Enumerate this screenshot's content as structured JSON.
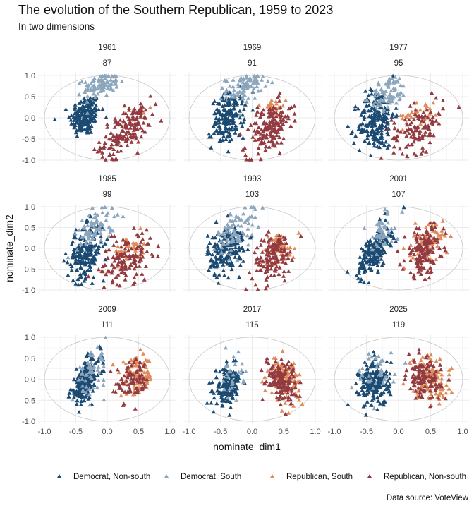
{
  "chart_data": {
    "type": "scatter",
    "title": "The evolution of the Southern Republican, 1959 to 2023",
    "subtitle": "In two dimensions",
    "xlabel": "nominate_dim1",
    "ylabel": "nominate_dim2",
    "caption": "Data source: VoteView",
    "xlim": [
      -1.1,
      1.1
    ],
    "ylim": [
      -1.05,
      1.05
    ],
    "x_ticks": [
      "-1.0",
      "-0.5",
      "0.0",
      "0.5",
      "1.0"
    ],
    "y_ticks": [
      "1.0",
      "0.5",
      "0.0",
      "-0.5",
      "-1.0"
    ],
    "x_tick_values": [
      -1.0,
      -0.5,
      0.0,
      0.5,
      1.0
    ],
    "y_tick_values": [
      1.0,
      0.5,
      0.0,
      -0.5,
      -1.0
    ],
    "grid": true,
    "reference_shape": "unit circle",
    "marker": "triangle",
    "legend_position": "bottom",
    "series": [
      {
        "name": "Democrat, Non-south",
        "color": "#1a4a72"
      },
      {
        "name": "Democrat, South",
        "color": "#8ba6bd"
      },
      {
        "name": "Republican, South",
        "color": "#e08b5a"
      },
      {
        "name": "Republican, Non-south",
        "color": "#923a40"
      }
    ],
    "panels": [
      {
        "year": "1961",
        "congress": "87",
        "clusters": [
          {
            "series": 0,
            "n": 170,
            "cx": -0.35,
            "cy": 0.05,
            "sx": 0.12,
            "sy": 0.25,
            "rho": 0.2
          },
          {
            "series": 1,
            "n": 95,
            "cx": -0.1,
            "cy": 0.78,
            "sx": 0.14,
            "sy": 0.15,
            "rho": 0.3
          },
          {
            "series": 2,
            "n": 8,
            "cx": 0.45,
            "cy": 0.15,
            "sx": 0.15,
            "sy": 0.1,
            "rho": 0.0
          },
          {
            "series": 3,
            "n": 165,
            "cx": 0.3,
            "cy": -0.3,
            "sx": 0.2,
            "sy": 0.3,
            "rho": 0.6
          }
        ]
      },
      {
        "year": "1969",
        "congress": "91",
        "clusters": [
          {
            "series": 0,
            "n": 170,
            "cx": -0.38,
            "cy": 0.0,
            "sx": 0.13,
            "sy": 0.3,
            "rho": 0.25
          },
          {
            "series": 1,
            "n": 80,
            "cx": -0.12,
            "cy": 0.72,
            "sx": 0.15,
            "sy": 0.17,
            "rho": 0.3
          },
          {
            "series": 2,
            "n": 25,
            "cx": 0.35,
            "cy": 0.25,
            "sx": 0.1,
            "sy": 0.13,
            "rho": 0.3
          },
          {
            "series": 3,
            "n": 160,
            "cx": 0.27,
            "cy": -0.25,
            "sx": 0.18,
            "sy": 0.32,
            "rho": 0.5
          }
        ]
      },
      {
        "year": "1977",
        "congress": "95",
        "clusters": [
          {
            "series": 0,
            "n": 200,
            "cx": -0.35,
            "cy": -0.05,
            "sx": 0.14,
            "sy": 0.38,
            "rho": 0.2
          },
          {
            "series": 1,
            "n": 75,
            "cx": -0.15,
            "cy": 0.6,
            "sx": 0.14,
            "sy": 0.2,
            "rho": 0.3
          },
          {
            "series": 2,
            "n": 30,
            "cx": 0.35,
            "cy": 0.15,
            "sx": 0.14,
            "sy": 0.15,
            "rho": 0.3
          },
          {
            "series": 3,
            "n": 115,
            "cx": 0.3,
            "cy": -0.25,
            "sx": 0.2,
            "sy": 0.3,
            "rho": 0.4
          }
        ]
      },
      {
        "year": "1985",
        "congress": "99",
        "clusters": [
          {
            "series": 0,
            "n": 200,
            "cx": -0.35,
            "cy": -0.1,
            "sx": 0.14,
            "sy": 0.32,
            "rho": 0.3
          },
          {
            "series": 1,
            "n": 75,
            "cx": -0.18,
            "cy": 0.5,
            "sx": 0.15,
            "sy": 0.25,
            "rho": 0.4
          },
          {
            "series": 2,
            "n": 40,
            "cx": 0.35,
            "cy": 0.0,
            "sx": 0.12,
            "sy": 0.17,
            "rho": 0.3
          },
          {
            "series": 3,
            "n": 130,
            "cx": 0.3,
            "cy": -0.25,
            "sx": 0.2,
            "sy": 0.3,
            "rho": 0.4
          }
        ]
      },
      {
        "year": "1993",
        "congress": "103",
        "clusters": [
          {
            "series": 0,
            "n": 190,
            "cx": -0.4,
            "cy": -0.05,
            "sx": 0.15,
            "sy": 0.3,
            "rho": 0.3
          },
          {
            "series": 1,
            "n": 80,
            "cx": -0.25,
            "cy": 0.45,
            "sx": 0.15,
            "sy": 0.28,
            "rho": 0.4
          },
          {
            "series": 2,
            "n": 60,
            "cx": 0.42,
            "cy": 0.0,
            "sx": 0.13,
            "sy": 0.2,
            "rho": 0.3
          },
          {
            "series": 3,
            "n": 130,
            "cx": 0.33,
            "cy": -0.2,
            "sx": 0.16,
            "sy": 0.3,
            "rho": 0.4
          }
        ]
      },
      {
        "year": "2001",
        "congress": "107",
        "clusters": [
          {
            "series": 0,
            "n": 175,
            "cx": -0.38,
            "cy": -0.1,
            "sx": 0.13,
            "sy": 0.3,
            "rho": 0.6
          },
          {
            "series": 1,
            "n": 50,
            "cx": -0.25,
            "cy": 0.4,
            "sx": 0.13,
            "sy": 0.28,
            "rho": 0.5
          },
          {
            "series": 2,
            "n": 85,
            "cx": 0.45,
            "cy": 0.1,
            "sx": 0.12,
            "sy": 0.25,
            "rho": 0.2
          },
          {
            "series": 3,
            "n": 135,
            "cx": 0.4,
            "cy": -0.05,
            "sx": 0.15,
            "sy": 0.3,
            "rho": 0.3
          }
        ]
      },
      {
        "year": "2009",
        "congress": "111",
        "clusters": [
          {
            "series": 0,
            "n": 200,
            "cx": -0.35,
            "cy": -0.05,
            "sx": 0.12,
            "sy": 0.28,
            "rho": 0.6
          },
          {
            "series": 1,
            "n": 55,
            "cx": -0.25,
            "cy": 0.15,
            "sx": 0.12,
            "sy": 0.3,
            "rho": 0.5
          },
          {
            "series": 2,
            "n": 95,
            "cx": 0.48,
            "cy": 0.05,
            "sx": 0.13,
            "sy": 0.22,
            "rho": 0.1
          },
          {
            "series": 3,
            "n": 80,
            "cx": 0.4,
            "cy": -0.05,
            "sx": 0.13,
            "sy": 0.25,
            "rho": 0.0
          }
        ]
      },
      {
        "year": "2017",
        "congress": "115",
        "clusters": [
          {
            "series": 0,
            "n": 160,
            "cx": -0.38,
            "cy": -0.15,
            "sx": 0.1,
            "sy": 0.22,
            "rho": 0.3
          },
          {
            "series": 1,
            "n": 30,
            "cx": -0.33,
            "cy": 0.1,
            "sx": 0.1,
            "sy": 0.25,
            "rho": 0.3
          },
          {
            "series": 2,
            "n": 110,
            "cx": 0.52,
            "cy": 0.0,
            "sx": 0.13,
            "sy": 0.25,
            "rho": -0.2
          },
          {
            "series": 3,
            "n": 130,
            "cx": 0.45,
            "cy": 0.0,
            "sx": 0.12,
            "sy": 0.25,
            "rho": -0.2
          }
        ]
      },
      {
        "year": "2025",
        "congress": "119",
        "clusters": [
          {
            "series": 0,
            "n": 175,
            "cx": -0.37,
            "cy": -0.1,
            "sx": 0.12,
            "sy": 0.28,
            "rho": 0.1
          },
          {
            "series": 1,
            "n": 35,
            "cx": -0.35,
            "cy": 0.1,
            "sx": 0.15,
            "sy": 0.3,
            "rho": 0.2
          },
          {
            "series": 2,
            "n": 115,
            "cx": 0.5,
            "cy": 0.0,
            "sx": 0.16,
            "sy": 0.28,
            "rho": -0.3
          },
          {
            "series": 3,
            "n": 110,
            "cx": 0.4,
            "cy": 0.0,
            "sx": 0.13,
            "sy": 0.25,
            "rho": -0.2
          }
        ]
      }
    ]
  }
}
